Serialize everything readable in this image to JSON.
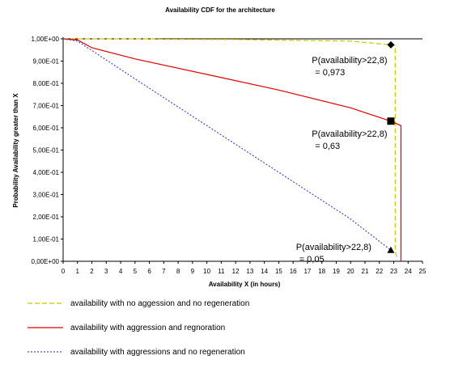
{
  "chart_data": {
    "type": "line",
    "title": "Availability CDF for the architecture",
    "xlabel": "Availability X (in hours)",
    "ylabel": "Probability Availability greater than X",
    "xlim": [
      0,
      25
    ],
    "ylim": [
      0,
      1
    ],
    "x_ticks": [
      "0",
      "1",
      "2",
      "3",
      "4",
      "5",
      "6",
      "7",
      "8",
      "9",
      "10",
      "11",
      "12",
      "13",
      "14",
      "15",
      "16",
      "17",
      "18",
      "19",
      "20",
      "21",
      "22",
      "23",
      "24",
      "25"
    ],
    "y_ticks": [
      {
        "value": 0,
        "label": "0,00E+00"
      },
      {
        "value": 0.1,
        "label": "1,00E-01"
      },
      {
        "value": 0.2,
        "label": "2,00E-01"
      },
      {
        "value": 0.3,
        "label": "3,00E-01"
      },
      {
        "value": 0.4,
        "label": "4,00E-01"
      },
      {
        "value": 0.5,
        "label": "5,00E-01"
      },
      {
        "value": 0.6,
        "label": "6,00E-01"
      },
      {
        "value": 0.7,
        "label": "7,00E-01"
      },
      {
        "value": 0.8,
        "label": "8,00E-01"
      },
      {
        "value": 0.9,
        "label": "9,00E-01"
      },
      {
        "value": 1.0,
        "label": "1,00E+00"
      }
    ],
    "series": [
      {
        "name": "availability with no aggession and no regeneration",
        "color": "#c8c800",
        "dash": "6,3",
        "marker": "diamond",
        "points": [
          [
            0,
            1
          ],
          [
            1,
            1
          ],
          [
            6,
            1
          ],
          [
            7,
            0.998
          ],
          [
            12,
            0.997
          ],
          [
            20,
            0.99
          ],
          [
            22.8,
            0.973
          ],
          [
            23.1,
            0.97
          ],
          [
            23.1,
            0.05
          ],
          [
            23.2,
            0.02
          ]
        ]
      },
      {
        "name": "availability with aggression and regnoration",
        "color": "#e00000",
        "dash": "",
        "marker": "square",
        "points": [
          [
            0,
            1
          ],
          [
            1,
            0.995
          ],
          [
            2,
            0.96
          ],
          [
            5,
            0.91
          ],
          [
            10,
            0.84
          ],
          [
            15,
            0.77
          ],
          [
            20,
            0.69
          ],
          [
            22.8,
            0.63
          ],
          [
            23.5,
            0.61
          ],
          [
            23.5,
            0.1
          ],
          [
            23.5,
            0
          ]
        ]
      },
      {
        "name": "availability with aggressions and no regeneration",
        "color": "#4a4ad8",
        "dash": "2,2",
        "marker": "triangle",
        "points": [
          [
            0,
            1
          ],
          [
            1,
            0.99
          ],
          [
            5,
            0.82
          ],
          [
            10,
            0.61
          ],
          [
            15,
            0.4
          ],
          [
            20,
            0.19
          ],
          [
            22.8,
            0.05
          ],
          [
            23,
            0.04
          ]
        ]
      }
    ],
    "markers": [
      {
        "series": 0,
        "x": 22.8,
        "y": 0.973
      },
      {
        "series": 1,
        "x": 22.8,
        "y": 0.63
      },
      {
        "series": 2,
        "x": 22.8,
        "y": 0.05
      }
    ],
    "annotations": [
      {
        "line1": "P(availability>22,8)",
        "line2": "= 0,973",
        "x": 17.3,
        "y": 0.84
      },
      {
        "line1": "P(availability>22,8)",
        "line2": "= 0,63",
        "x": 17.3,
        "y": 0.51
      },
      {
        "line1": "P(availability>22,8)",
        "line2": "= 0,05",
        "x": 16.2,
        "y": 0.0
      },
      {
        "line1": "",
        "line2": "",
        "x": 0,
        "y": 0
      }
    ],
    "legend_position": "bottom"
  }
}
